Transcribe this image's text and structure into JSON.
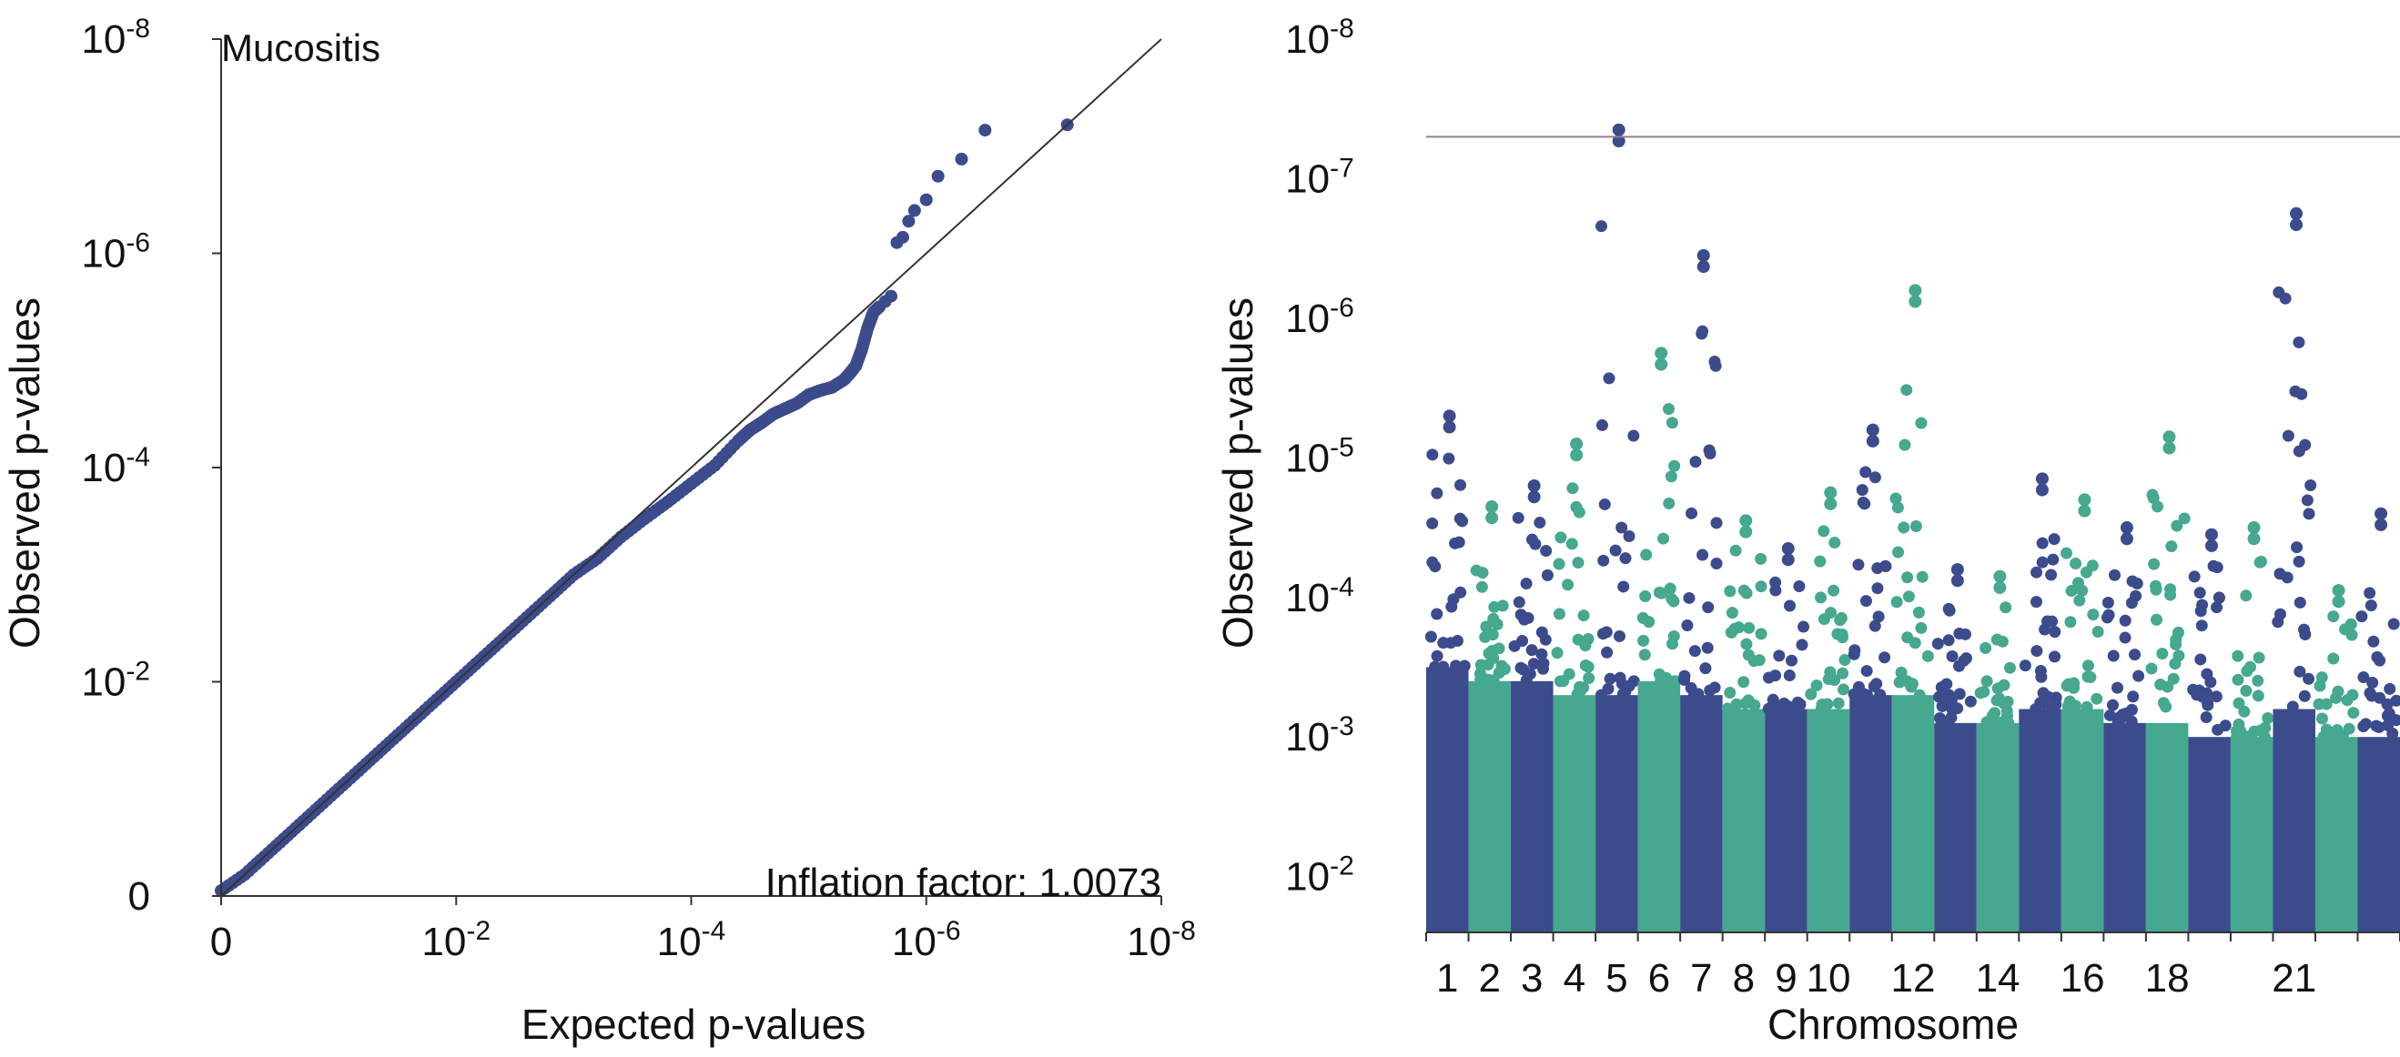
{
  "colors": {
    "navy": "#3b4b8c",
    "teal": "#45a88f",
    "line": "#111111",
    "threshold": "#888888"
  },
  "chart_data": [
    {
      "type": "scatter",
      "title": "Mucositis",
      "xlabel": "Expected p-values",
      "ylabel": "Observed p-values",
      "annotation": "Inflation factor: 1.0073",
      "xlim": [
        0,
        8
      ],
      "ylim": [
        0,
        8
      ],
      "x_ticks": [
        {
          "value": 0,
          "base": "0",
          "exp": ""
        },
        {
          "value": 2,
          "base": "10",
          "exp": "-2"
        },
        {
          "value": 4,
          "base": "10",
          "exp": "-4"
        },
        {
          "value": 6,
          "base": "10",
          "exp": "-6"
        },
        {
          "value": 8,
          "base": "10",
          "exp": "-8"
        }
      ],
      "y_ticks": [
        {
          "value": 0,
          "base": "0",
          "exp": ""
        },
        {
          "value": 2,
          "base": "10",
          "exp": "-2"
        },
        {
          "value": 4,
          "base": "10",
          "exp": "-4"
        },
        {
          "value": 6,
          "base": "10",
          "exp": "-6"
        },
        {
          "value": 8,
          "base": "10",
          "exp": "-8"
        }
      ],
      "reference_line": [
        [
          0,
          0
        ],
        [
          8,
          8
        ]
      ],
      "series": [
        {
          "color": "#3b4b8c",
          "x": [
            0.0,
            0.2,
            0.4,
            0.6,
            0.8,
            1.0,
            1.2,
            1.4,
            1.6,
            1.8,
            2.0,
            2.2,
            2.4,
            2.6,
            2.8,
            3.0,
            3.2,
            3.4,
            3.6,
            3.8,
            4.0,
            4.2,
            4.4,
            4.5,
            4.6,
            4.7,
            4.8,
            4.9,
            5.0,
            5.1,
            5.2,
            5.3,
            5.35,
            5.4,
            5.45,
            5.5,
            5.55,
            5.6,
            5.65,
            5.7,
            5.75,
            5.8,
            5.85,
            5.9,
            6.0,
            6.1,
            6.3,
            6.5,
            7.2
          ],
          "y": [
            0.05,
            0.2,
            0.4,
            0.6,
            0.8,
            1.0,
            1.2,
            1.4,
            1.6,
            1.8,
            2.0,
            2.2,
            2.4,
            2.6,
            2.8,
            3.0,
            3.15,
            3.35,
            3.52,
            3.68,
            3.85,
            4.02,
            4.25,
            4.35,
            4.42,
            4.5,
            4.55,
            4.6,
            4.68,
            4.72,
            4.75,
            4.82,
            4.88,
            4.95,
            5.1,
            5.3,
            5.45,
            5.5,
            5.55,
            5.6,
            6.1,
            6.15,
            6.3,
            6.4,
            6.5,
            6.72,
            6.88,
            7.15,
            7.2
          ]
        }
      ]
    },
    {
      "type": "scatter",
      "title": "",
      "xlabel": "Chromosome",
      "ylabel": "Observed p-values",
      "ylim": [
        2,
        8
      ],
      "y_ticks": [
        {
          "value": 2,
          "base": "10",
          "exp": "-2"
        },
        {
          "value": 3,
          "base": "10",
          "exp": "-3"
        },
        {
          "value": 4,
          "base": "10",
          "exp": "-4"
        },
        {
          "value": 5,
          "base": "10",
          "exp": "-5"
        },
        {
          "value": 6,
          "base": "10",
          "exp": "-6"
        },
        {
          "value": 7,
          "base": "10",
          "exp": "-7"
        },
        {
          "value": 8,
          "base": "10",
          "exp": "-8"
        }
      ],
      "significance_threshold": 7.3,
      "chromosomes": [
        {
          "chr": 1,
          "label": "1",
          "color": "#3b4b8c",
          "max": 5.3,
          "bulk": 3.5
        },
        {
          "chr": 2,
          "label": "2",
          "color": "#45a88f",
          "max": 4.65,
          "bulk": 3.4
        },
        {
          "chr": 3,
          "label": "3",
          "color": "#3b4b8c",
          "max": 4.8,
          "bulk": 3.4
        },
        {
          "chr": 4,
          "label": "4",
          "color": "#45a88f",
          "max": 5.1,
          "bulk": 3.3
        },
        {
          "chr": 5,
          "label": "5",
          "color": "#3b4b8c",
          "max": 7.35,
          "bulk": 3.3
        },
        {
          "chr": 6,
          "label": "6",
          "color": "#45a88f",
          "max": 5.75,
          "bulk": 3.4
        },
        {
          "chr": 7,
          "label": "7",
          "color": "#3b4b8c",
          "max": 6.45,
          "bulk": 3.3
        },
        {
          "chr": 8,
          "label": "8",
          "color": "#45a88f",
          "max": 4.55,
          "bulk": 3.2
        },
        {
          "chr": 9,
          "label": "9",
          "color": "#3b4b8c",
          "max": 4.35,
          "bulk": 3.2
        },
        {
          "chr": 10,
          "label": "10",
          "color": "#45a88f",
          "max": 4.75,
          "bulk": 3.2
        },
        {
          "chr": 11,
          "label": "",
          "color": "#3b4b8c",
          "max": 5.2,
          "bulk": 3.3
        },
        {
          "chr": 12,
          "label": "12",
          "color": "#45a88f",
          "max": 6.2,
          "bulk": 3.3
        },
        {
          "chr": 13,
          "label": "",
          "color": "#3b4b8c",
          "max": 4.2,
          "bulk": 3.1
        },
        {
          "chr": 14,
          "label": "14",
          "color": "#45a88f",
          "max": 4.15,
          "bulk": 3.1
        },
        {
          "chr": 15,
          "label": "",
          "color": "#3b4b8c",
          "max": 4.85,
          "bulk": 3.2
        },
        {
          "chr": 16,
          "label": "16",
          "color": "#45a88f",
          "max": 4.7,
          "bulk": 3.2
        },
        {
          "chr": 17,
          "label": "",
          "color": "#3b4b8c",
          "max": 4.5,
          "bulk": 3.1
        },
        {
          "chr": 18,
          "label": "18",
          "color": "#45a88f",
          "max": 5.15,
          "bulk": 3.1
        },
        {
          "chr": 19,
          "label": "",
          "color": "#3b4b8c",
          "max": 4.45,
          "bulk": 3.0
        },
        {
          "chr": 20,
          "label": "",
          "color": "#45a88f",
          "max": 4.5,
          "bulk": 3.0
        },
        {
          "chr": 21,
          "label": "21",
          "color": "#3b4b8c",
          "max": 6.75,
          "bulk": 3.2
        },
        {
          "chr": 22,
          "label": "",
          "color": "#45a88f",
          "max": 4.05,
          "bulk": 3.0
        },
        {
          "chr": 23,
          "label": "",
          "color": "#3b4b8c",
          "max": 4.6,
          "bulk": 3.0
        }
      ]
    }
  ]
}
